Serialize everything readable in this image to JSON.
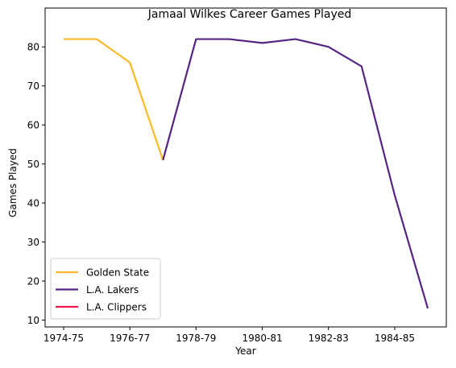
{
  "chart_data": {
    "type": "line",
    "title": "Jamaal Wilkes Career Games Played",
    "xlabel": "Year",
    "ylabel": "Games Played",
    "x_categories": [
      "1974-75",
      "1975-76",
      "1976-77",
      "1977-78",
      "1978-79",
      "1979-80",
      "1980-81",
      "1981-82",
      "1982-83",
      "1983-84",
      "1984-85",
      "1985-86"
    ],
    "x_tick_labels": [
      "1974-75",
      "1976-77",
      "1978-79",
      "1980-81",
      "1982-83",
      "1984-85"
    ],
    "ylim": [
      10,
      85
    ],
    "y_ticks": [
      10,
      20,
      30,
      40,
      50,
      60,
      70,
      80
    ],
    "grid": false,
    "legend_position": "lower-left",
    "series": [
      {
        "name": "Golden State",
        "color": "#FDB927",
        "x": [
          "1974-75",
          "1975-76",
          "1976-77",
          "1977-78"
        ],
        "values": [
          82,
          82,
          76,
          51
        ]
      },
      {
        "name": "L.A. Lakers",
        "color": "#552583",
        "x": [
          "1977-78",
          "1978-79",
          "1979-80",
          "1980-81",
          "1981-82",
          "1982-83",
          "1983-84",
          "1984-85",
          "1985-86"
        ],
        "values": [
          51,
          82,
          82,
          81,
          82,
          80,
          75,
          42,
          13
        ]
      },
      {
        "name": "L.A. Clippers",
        "color": "#ED174C",
        "x": [
          "1985-86"
        ],
        "values": [
          13
        ]
      }
    ]
  }
}
